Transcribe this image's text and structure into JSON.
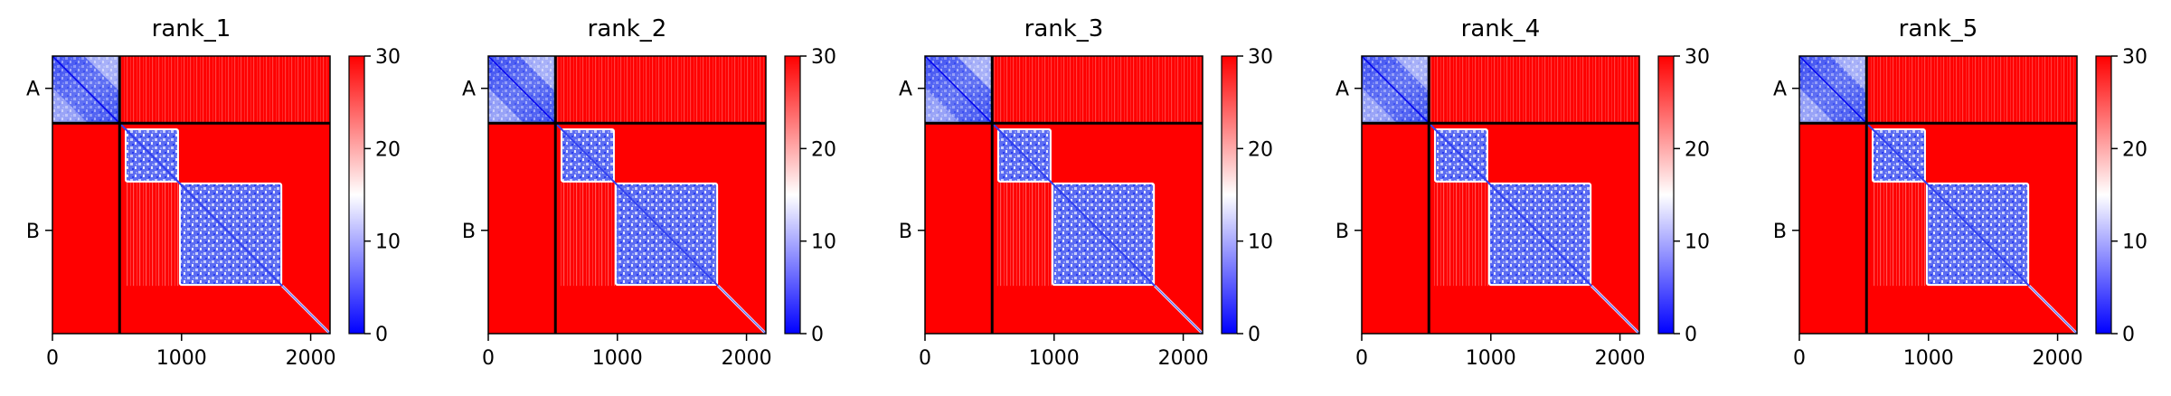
{
  "chart_data": {
    "type": "heatmap",
    "panels": [
      {
        "title": "rank_1"
      },
      {
        "title": "rank_2"
      },
      {
        "title": "rank_3"
      },
      {
        "title": "rank_4"
      },
      {
        "title": "rank_5"
      }
    ],
    "x_range": [
      0,
      2150
    ],
    "x_ticks": [
      0,
      1000,
      2000
    ],
    "y_categories": [
      {
        "label": "A",
        "center": 250
      },
      {
        "label": "B",
        "center": 1350
      }
    ],
    "chain_boundary": 520,
    "colorbar": {
      "min": 0,
      "max": 30,
      "ticks": [
        0,
        10,
        20,
        30
      ],
      "colormap": [
        "#0000ff",
        "#ffffff",
        "#ff0000"
      ]
    },
    "low_value_blocks": [
      {
        "start": 0,
        "end": 520
      },
      {
        "start": 560,
        "end": 980
      },
      {
        "start": 980,
        "end": 1780
      }
    ],
    "background_value": 30,
    "grid": false
  }
}
